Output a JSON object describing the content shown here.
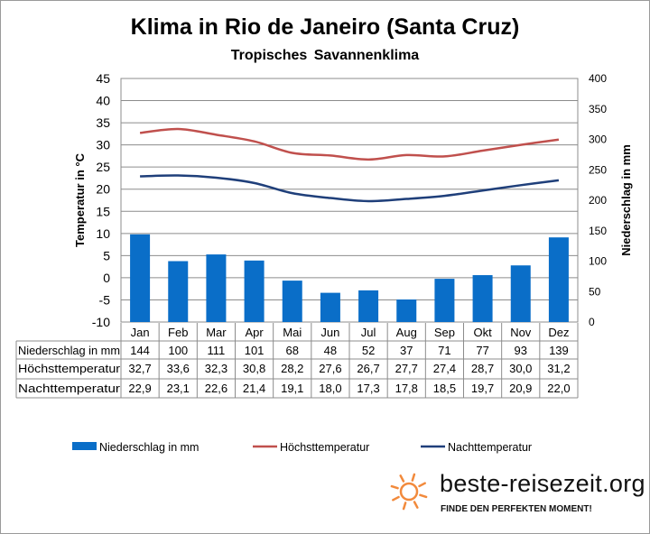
{
  "chart_data": {
    "type": "bar+line",
    "title": "Klima in Rio de Janeiro (Santa Cruz)",
    "subtitle": "Tropisches Savannenklima",
    "ylabel_left": "Temperatur in °C",
    "ylabel_right": "Niederschlag in mm",
    "ylim_left": [
      -10,
      45
    ],
    "ylim_right": [
      0,
      400
    ],
    "yticks_left": [
      45,
      40,
      35,
      30,
      25,
      20,
      15,
      10,
      5,
      0,
      -5,
      -10
    ],
    "yticks_right": [
      400,
      350,
      300,
      250,
      200,
      150,
      100,
      50,
      0
    ],
    "grid": true,
    "legend_placement": "bottom",
    "categories": [
      "Jan",
      "Feb",
      "Mar",
      "Apr",
      "Mai",
      "Jun",
      "Jul",
      "Aug",
      "Sep",
      "Okt",
      "Nov",
      "Dez"
    ],
    "series": [
      {
        "name": "Niederschlag in mm",
        "table_label": "Niederschlag in mm",
        "type": "bar",
        "axis": "right",
        "color": "#0a6ec8",
        "values": [
          144,
          100,
          111,
          101,
          68,
          48,
          52,
          37,
          71,
          77,
          93,
          139
        ],
        "labels": [
          "144",
          "100",
          "111",
          "101",
          "68",
          "48",
          "52",
          "37",
          "71",
          "77",
          "93",
          "139"
        ]
      },
      {
        "name": "Höchsttemperatur",
        "table_label": "Höchsttemperatur",
        "type": "line",
        "axis": "left",
        "color": "#c0504d",
        "values": [
          32.7,
          33.6,
          32.3,
          30.8,
          28.2,
          27.6,
          26.7,
          27.7,
          27.4,
          28.7,
          30.0,
          31.2
        ],
        "labels": [
          "32,7",
          "33,6",
          "32,3",
          "30,8",
          "28,2",
          "27,6",
          "26,7",
          "27,7",
          "27,4",
          "28,7",
          "30,0",
          "31,2"
        ]
      },
      {
        "name": "Nachttemperatur",
        "table_label": "Nachttemperatur",
        "type": "line",
        "axis": "left",
        "color": "#1f3f7a",
        "values": [
          22.9,
          23.1,
          22.6,
          21.4,
          19.1,
          18.0,
          17.3,
          17.8,
          18.5,
          19.7,
          20.9,
          22.0
        ],
        "labels": [
          "22,9",
          "23,1",
          "22,6",
          "21,4",
          "19,1",
          "18,0",
          "17,3",
          "17,8",
          "18,5",
          "19,7",
          "20,9",
          "22,0"
        ]
      }
    ]
  },
  "logo": {
    "name": "beste-reisezeit.org",
    "tagline": "FINDE DEN PERFEKTEN MOMENT!",
    "color": "#f28a3c"
  }
}
